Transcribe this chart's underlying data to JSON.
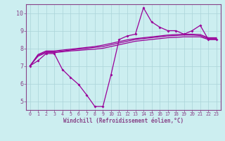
{
  "xlabel": "Windchill (Refroidissement éolien,°C)",
  "background_color": "#cceef0",
  "grid_color": "#aad4d8",
  "line_color": "#990099",
  "spine_color": "#884488",
  "xlim": [
    -0.5,
    23.5
  ],
  "ylim": [
    4.5,
    10.5
  ],
  "yticks": [
    5,
    6,
    7,
    8,
    9,
    10
  ],
  "xticks": [
    0,
    1,
    2,
    3,
    4,
    5,
    6,
    7,
    8,
    9,
    10,
    11,
    12,
    13,
    14,
    15,
    16,
    17,
    18,
    19,
    20,
    21,
    22,
    23
  ],
  "series1_x": [
    0,
    1,
    2,
    3,
    4,
    5,
    6,
    7,
    8,
    9,
    10,
    11,
    12,
    13,
    14,
    15,
    16,
    17,
    18,
    19,
    20,
    21,
    22,
    23
  ],
  "series1_y": [
    7.0,
    7.3,
    7.7,
    7.7,
    6.8,
    6.35,
    5.95,
    5.35,
    4.7,
    4.7,
    6.5,
    8.5,
    8.7,
    8.8,
    10.3,
    9.5,
    9.2,
    9.0,
    9.0,
    8.8,
    9.0,
    9.3,
    8.5,
    8.5
  ],
  "series2_x": [
    0,
    1,
    2,
    3,
    4,
    5,
    6,
    7,
    8,
    9,
    10,
    11,
    12,
    13,
    14,
    15,
    16,
    17,
    18,
    19,
    20,
    21,
    22,
    23
  ],
  "series2_y": [
    7.0,
    7.55,
    7.75,
    7.75,
    7.8,
    7.85,
    7.88,
    7.92,
    7.95,
    8.0,
    8.1,
    8.2,
    8.3,
    8.4,
    8.45,
    8.5,
    8.55,
    8.6,
    8.62,
    8.65,
    8.65,
    8.65,
    8.5,
    8.5
  ],
  "series3_x": [
    0,
    1,
    2,
    3,
    4,
    5,
    6,
    7,
    8,
    9,
    10,
    11,
    12,
    13,
    14,
    15,
    16,
    17,
    18,
    19,
    20,
    21,
    22,
    23
  ],
  "series3_y": [
    7.0,
    7.6,
    7.8,
    7.8,
    7.85,
    7.9,
    7.95,
    8.0,
    8.05,
    8.1,
    8.2,
    8.3,
    8.4,
    8.5,
    8.55,
    8.6,
    8.65,
    8.7,
    8.72,
    8.75,
    8.75,
    8.72,
    8.55,
    8.55
  ],
  "series4_x": [
    0,
    1,
    2,
    3,
    4,
    5,
    6,
    7,
    8,
    9,
    10,
    11,
    12,
    13,
    14,
    15,
    16,
    17,
    18,
    19,
    20,
    21,
    22,
    23
  ],
  "series4_y": [
    7.0,
    7.65,
    7.85,
    7.85,
    7.9,
    7.95,
    8.0,
    8.05,
    8.1,
    8.18,
    8.28,
    8.38,
    8.48,
    8.55,
    8.6,
    8.65,
    8.7,
    8.75,
    8.78,
    8.8,
    8.8,
    8.78,
    8.6,
    8.6
  ]
}
